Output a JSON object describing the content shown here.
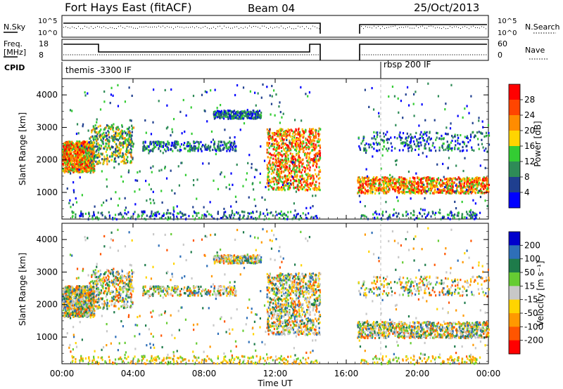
{
  "header": {
    "station": "Fort Hays East (fitACF)",
    "beam": "Beam 04",
    "date": "25/Oct/2013"
  },
  "summary_panels": {
    "nsky_label": "N.Sky",
    "nsky_ticks": [
      "10^5",
      "10^0"
    ],
    "nsearch_label": "N.Search",
    "nsearch_ticks": [
      "10^5",
      "10^0"
    ],
    "freq_label_1": "Freq.",
    "freq_label_2": "[MHz]",
    "freq_ticks": [
      "18",
      "8"
    ],
    "nave_label": "Nave",
    "nave_ticks": [
      "60",
      "0"
    ],
    "cpid_label": "CPID",
    "cpid_entries": [
      "themis -3300 IF",
      "rbsp 200 IF"
    ]
  },
  "chart_data": [
    {
      "type": "heatmap",
      "title": "",
      "xlabel": "Time UT",
      "ylabel": "Slant Range [km]",
      "x_ticks": [
        "00:00",
        "04:00",
        "08:00",
        "12:00",
        "16:00",
        "20:00",
        "00:00"
      ],
      "y_ticks": [
        "1000",
        "2000",
        "3000",
        "4000"
      ],
      "xlim_hours": [
        0,
        24
      ],
      "ylim_km": [
        180,
        4500
      ],
      "colorbar_label": "Power [dB]",
      "colorbar_ticks": [
        "28",
        "24",
        "20",
        "16",
        "12",
        "8",
        "4"
      ],
      "colorbar_colors": [
        "#ff0000",
        "#ff4500",
        "#ff8c00",
        "#ffd400",
        "#33cc33",
        "#2e8b57",
        "#1f3f8f",
        "#0000ff"
      ],
      "data_gap_hours": [
        14.5,
        16.6
      ],
      "echo_bands": [
        {
          "t": [
            0,
            1.8
          ],
          "range_km": [
            1650,
            2600
          ],
          "level": "high"
        },
        {
          "t": [
            1.5,
            4.0
          ],
          "range_km": [
            1900,
            3100
          ],
          "level": "medium"
        },
        {
          "t": [
            4.5,
            9.8
          ],
          "range_km": [
            2300,
            2600
          ],
          "level": "low"
        },
        {
          "t": [
            8.5,
            11.2
          ],
          "range_km": [
            3300,
            3550
          ],
          "level": "low"
        },
        {
          "t": [
            11.5,
            14.5
          ],
          "range_km": [
            1100,
            3000
          ],
          "level": "high"
        },
        {
          "t": [
            16.6,
            24
          ],
          "range_km": [
            1000,
            1500
          ],
          "level": "high"
        },
        {
          "t": [
            16.6,
            24
          ],
          "range_km": [
            2300,
            2900
          ],
          "level": "low"
        }
      ]
    },
    {
      "type": "heatmap",
      "title": "",
      "xlabel": "Time UT",
      "ylabel": "Slant Range [km]",
      "x_ticks": [
        "00:00",
        "04:00",
        "08:00",
        "12:00",
        "16:00",
        "20:00",
        "00:00"
      ],
      "y_ticks": [
        "1000",
        "2000",
        "3000",
        "4000"
      ],
      "xlim_hours": [
        0,
        24
      ],
      "ylim_km": [
        180,
        4500
      ],
      "colorbar_label": "Velocity [m s⁻¹]",
      "colorbar_ticks": [
        "200",
        "100",
        "50",
        "15",
        "-15",
        "-50",
        "-100",
        "-200"
      ],
      "colorbar_colors": [
        "#0000cc",
        "#2e6fb8",
        "#1e7b4a",
        "#66cc33",
        "#c8c8c8",
        "#ffd400",
        "#ff9900",
        "#ff5500",
        "#ff0000"
      ],
      "ground_scatter_color": "#bbbbbb",
      "data_gap_hours": [
        14.5,
        16.6
      ]
    }
  ]
}
